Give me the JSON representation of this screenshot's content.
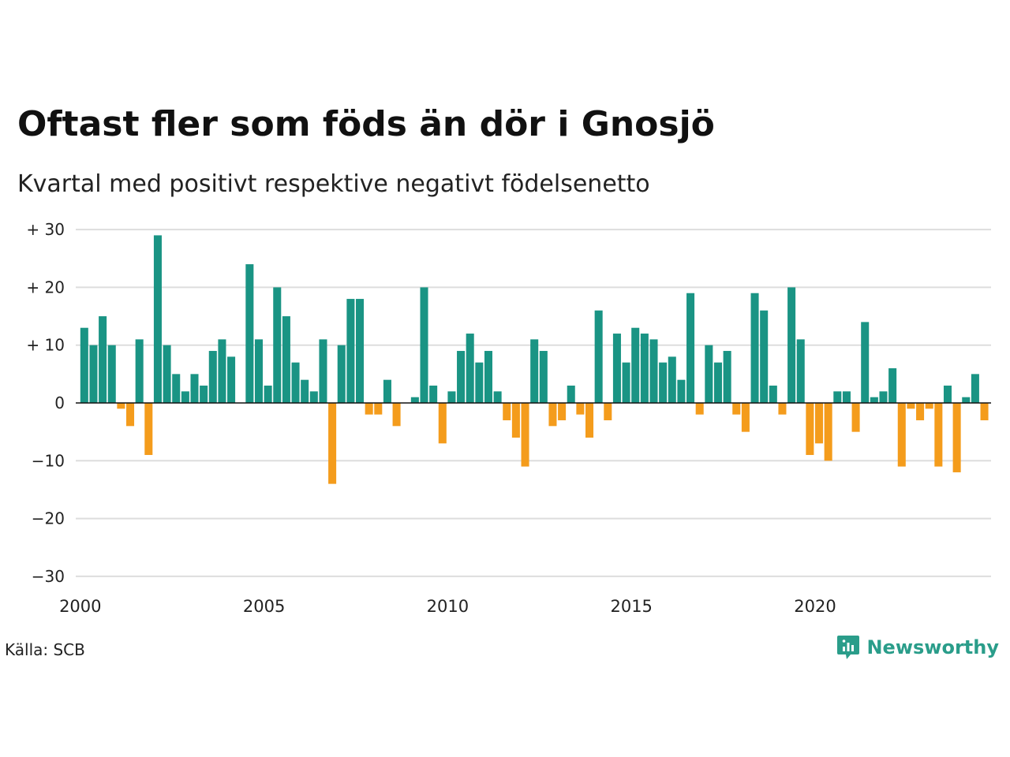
{
  "title": "Oftast fler som föds än dör i Gnosjö",
  "subtitle": "Kvartal med positivt respektive negativt födelsenetto",
  "source": "Källa: SCB",
  "brand": "Newsworthy",
  "colors": {
    "positive": "#1a9484",
    "negative": "#f49c1c",
    "grid": "#dddddd",
    "zero": "#111111",
    "brand": "#2a9d8a"
  },
  "chart_data": {
    "type": "bar",
    "x_start": "2000 Q1",
    "x_ticks": [
      {
        "year": 2000,
        "label": "2000"
      },
      {
        "year": 2005,
        "label": "2005"
      },
      {
        "year": 2010,
        "label": "2010"
      },
      {
        "year": 2015,
        "label": "2015"
      },
      {
        "year": 2020,
        "label": "2020"
      }
    ],
    "y_ticks": [
      {
        "value": 30,
        "label": "+ 30"
      },
      {
        "value": 20,
        "label": "+ 20"
      },
      {
        "value": 10,
        "label": "+ 10"
      },
      {
        "value": 0,
        "label": "0"
      },
      {
        "value": -10,
        "label": "−10"
      },
      {
        "value": -20,
        "label": "−20"
      },
      {
        "value": -30,
        "label": "−30"
      }
    ],
    "ylim": [
      -30,
      30
    ],
    "grid": true,
    "values": [
      13,
      10,
      15,
      10,
      -1,
      -4,
      11,
      -9,
      29,
      10,
      5,
      2,
      5,
      3,
      9,
      11,
      8,
      0,
      24,
      11,
      3,
      20,
      15,
      7,
      4,
      2,
      11,
      -14,
      10,
      18,
      18,
      -2,
      -2,
      4,
      -4,
      0,
      1,
      20,
      3,
      -7,
      2,
      9,
      12,
      7,
      9,
      2,
      -3,
      -6,
      -11,
      11,
      9,
      -4,
      -3,
      3,
      -2,
      -6,
      16,
      -3,
      12,
      7,
      13,
      12,
      11,
      7,
      8,
      4,
      19,
      -2,
      10,
      7,
      9,
      -2,
      -5,
      19,
      16,
      3,
      -2,
      20,
      11,
      -9,
      -7,
      -10,
      2,
      2,
      -5,
      14,
      1,
      2,
      6,
      -11,
      -1,
      -3,
      -1,
      -11,
      3,
      -12,
      1,
      5,
      -3
    ]
  }
}
